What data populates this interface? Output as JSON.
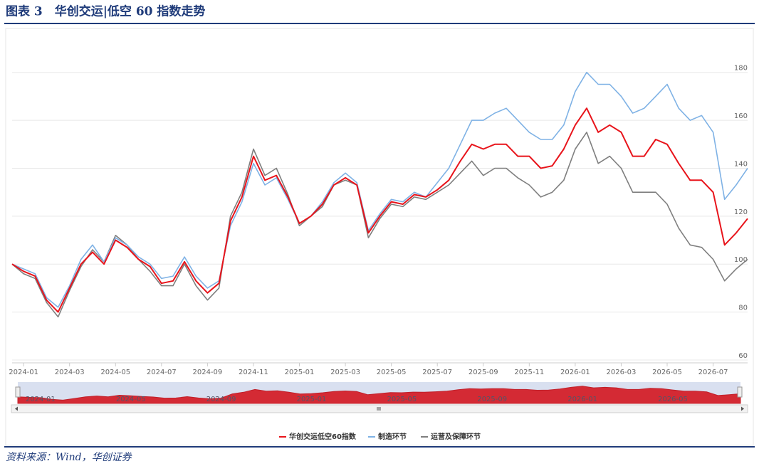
{
  "chart_data": {
    "type": "line",
    "title": "图表 3　华创交运|低空 60 指数走势",
    "source": "资料来源：Wind，华创证券",
    "categories": [
      null,
      "2024-01",
      null,
      null,
      null,
      "2024-03",
      null,
      null,
      null,
      "2024-05",
      null,
      null,
      null,
      "2024-07",
      null,
      null,
      null,
      "2024-09",
      null,
      null,
      null,
      "2024-11",
      null,
      null,
      null,
      "2025-01",
      null,
      null,
      null,
      "2025-03",
      null,
      null,
      null,
      "2025-05",
      null,
      null,
      null,
      "2025-07",
      null,
      null,
      null,
      "2025-09",
      null,
      null,
      null,
      "2025-11",
      null,
      null,
      null,
      "2026-01",
      null,
      null,
      null,
      "2026-03",
      null,
      null,
      null,
      "2026-05",
      null,
      null,
      null,
      "2026-07",
      null,
      null,
      null
    ],
    "series": [
      {
        "name": "华创交运低空60指数",
        "color": "#e8141b",
        "values": [
          100,
          97,
          95,
          85,
          80,
          90,
          100,
          105,
          100,
          110,
          107,
          102,
          99,
          92,
          93,
          101,
          93,
          88,
          92,
          118,
          128,
          145,
          135,
          137,
          128,
          117,
          120,
          125,
          133,
          136,
          133,
          113,
          120,
          126,
          125,
          129,
          128,
          131,
          135,
          143,
          150,
          148,
          150,
          150,
          145,
          145,
          140,
          141,
          148,
          158,
          165,
          155,
          158,
          155,
          145,
          145,
          152,
          150,
          142,
          135,
          135,
          130,
          108,
          113,
          119
        ]
      },
      {
        "name": "制造环节",
        "color": "#7fb2e5",
        "values": [
          100,
          98,
          96,
          86,
          82,
          91,
          102,
          108,
          101,
          111,
          108,
          103,
          100,
          94,
          95,
          103,
          95,
          90,
          93,
          116,
          126,
          142,
          133,
          136,
          127,
          117,
          120,
          126,
          134,
          138,
          134,
          114,
          121,
          127,
          126,
          130,
          128,
          134,
          140,
          150,
          160,
          160,
          163,
          165,
          160,
          155,
          152,
          152,
          158,
          172,
          180,
          175,
          175,
          170,
          163,
          165,
          170,
          175,
          165,
          160,
          162,
          155,
          127,
          133,
          140
        ]
      },
      {
        "name": "运营及保障环节",
        "color": "#7f7f7f",
        "values": [
          100,
          96,
          94,
          84,
          78,
          89,
          99,
          106,
          101,
          112,
          108,
          102,
          97,
          91,
          91,
          100,
          91,
          85,
          90,
          120,
          130,
          148,
          137,
          140,
          129,
          116,
          120,
          124,
          133,
          135,
          133,
          111,
          119,
          125,
          124,
          128,
          127,
          130,
          133,
          138,
          143,
          137,
          140,
          140,
          136,
          133,
          128,
          130,
          135,
          148,
          155,
          142,
          145,
          140,
          130,
          130,
          130,
          125,
          115,
          108,
          107,
          102,
          93,
          98,
          102
        ]
      }
    ],
    "ylim": [
      60,
      190
    ],
    "yticks": [
      60,
      80,
      100,
      120,
      140,
      160,
      180
    ],
    "grid": true,
    "legend": "bottom"
  }
}
